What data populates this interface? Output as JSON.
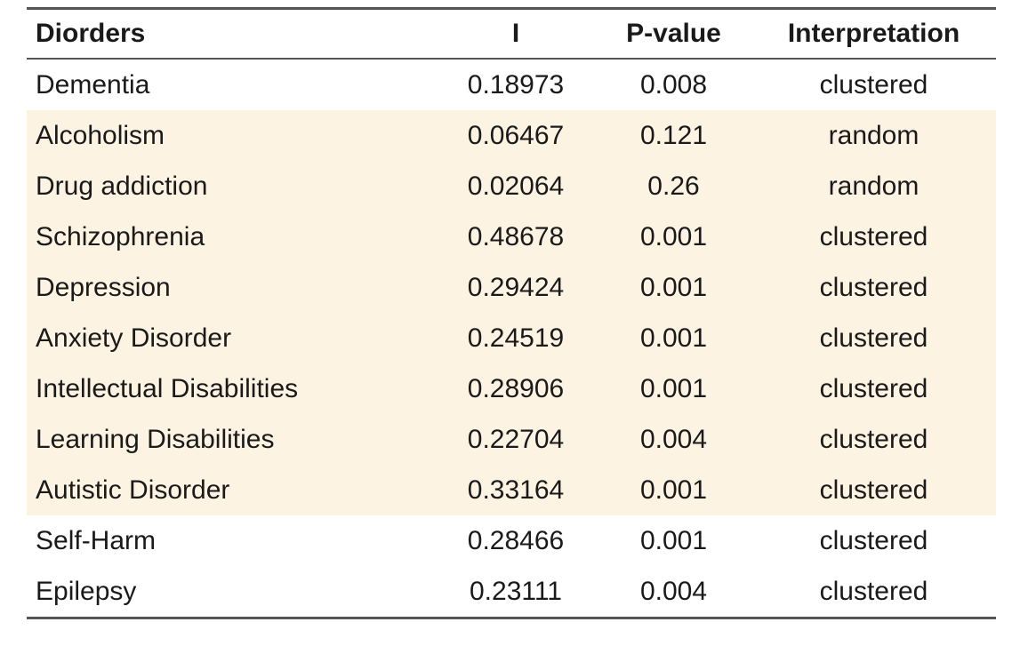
{
  "table": {
    "headers": {
      "disorder": "Diorders",
      "i": "I",
      "p_value": "P-value",
      "interpretation": "Interpretation"
    },
    "rows": [
      {
        "disorder": "Dementia",
        "i": "0.18973",
        "p_value": "0.008",
        "interpretation": "clustered",
        "highlighted": false
      },
      {
        "disorder": "Alcoholism",
        "i": "0.06467",
        "p_value": "0.121",
        "interpretation": "random",
        "highlighted": true
      },
      {
        "disorder": "Drug addiction",
        "i": "0.02064",
        "p_value": "0.26",
        "interpretation": "random",
        "highlighted": true
      },
      {
        "disorder": "Schizophrenia",
        "i": "0.48678",
        "p_value": "0.001",
        "interpretation": "clustered",
        "highlighted": true
      },
      {
        "disorder": "Depression",
        "i": "0.29424",
        "p_value": "0.001",
        "interpretation": "clustered",
        "highlighted": true
      },
      {
        "disorder": "Anxiety Disorder",
        "i": "0.24519",
        "p_value": "0.001",
        "interpretation": "clustered",
        "highlighted": true
      },
      {
        "disorder": "Intellectual Disabilities",
        "i": "0.28906",
        "p_value": "0.001",
        "interpretation": "clustered",
        "highlighted": true
      },
      {
        "disorder": "Learning Disabilities",
        "i": "0.22704",
        "p_value": "0.004",
        "interpretation": "clustered",
        "highlighted": true
      },
      {
        "disorder": "Autistic Disorder",
        "i": "0.33164",
        "p_value": "0.001",
        "interpretation": "clustered",
        "highlighted": true
      },
      {
        "disorder": "Self-Harm",
        "i": "0.28466",
        "p_value": "0.001",
        "interpretation": "clustered",
        "highlighted": false
      },
      {
        "disorder": "Epilepsy",
        "i": "0.23111",
        "p_value": "0.004",
        "interpretation": "clustered",
        "highlighted": false
      }
    ],
    "colors": {
      "highlight_background": "#fdf3e3",
      "rule_color": "#555555",
      "text_color": "#1a1a1a"
    }
  }
}
